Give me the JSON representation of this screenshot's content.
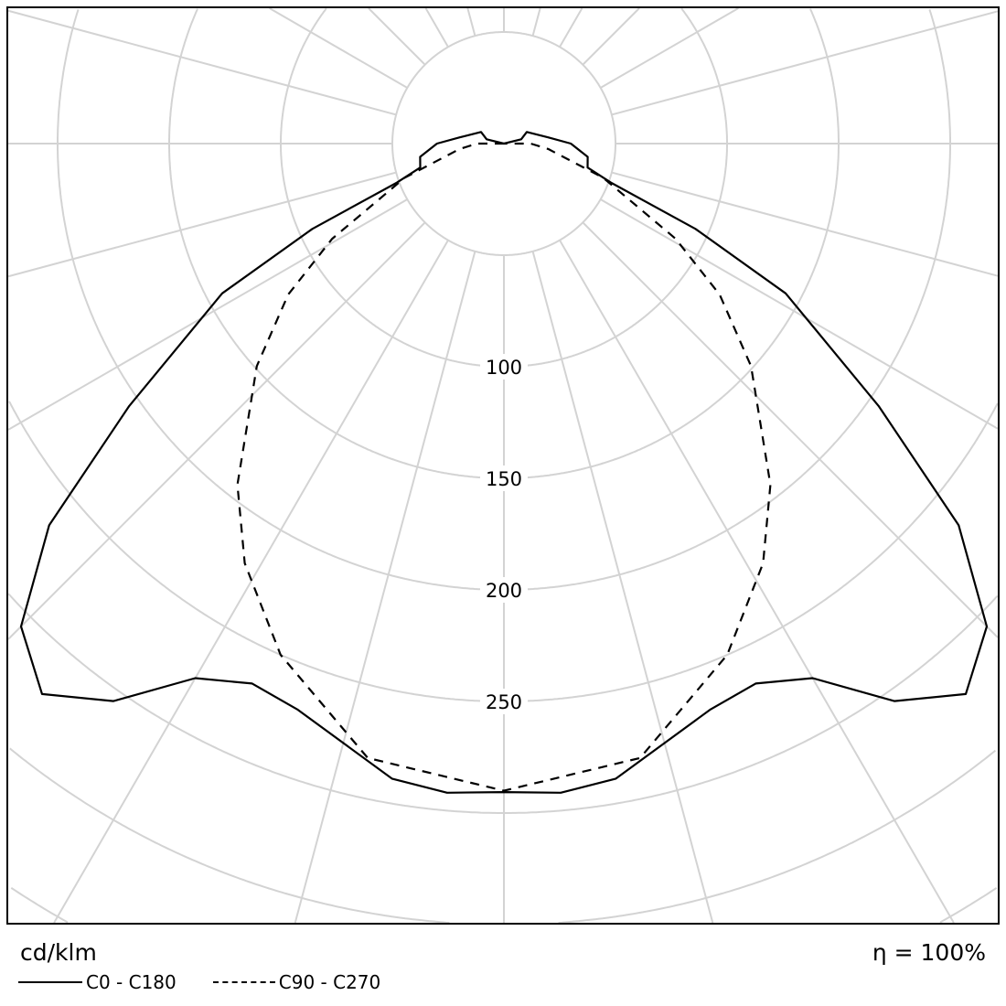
{
  "chart_data": {
    "type": "polar",
    "unit_label": "cd/klm",
    "efficiency_label": "η = 100%",
    "ring_values": [
      50,
      100,
      150,
      200,
      250,
      300,
      350,
      400,
      450
    ],
    "ring_labels": [
      "100",
      "150",
      "200",
      "250"
    ],
    "angle_step_deg": 15,
    "grid": true,
    "grid_color": "#d3d3d3",
    "legend_placement": "bottom-left",
    "series": [
      {
        "name": "C0 - C180",
        "style": "solid",
        "color": "#000000",
        "symmetric": true,
        "points": [
          [
            0,
            290.6
          ],
          [
            5,
            292
          ],
          [
            10,
            289
          ],
          [
            20,
            270
          ],
          [
            25,
            267
          ],
          [
            30,
            276.6
          ],
          [
            35,
            305
          ],
          [
            40,
            322
          ],
          [
            45,
            306
          ],
          [
            50,
            266
          ],
          [
            55,
            205
          ],
          [
            62,
            143
          ],
          [
            66,
            94
          ],
          [
            70,
            51
          ],
          [
            74,
            39
          ],
          [
            81,
            38
          ],
          [
            90,
            30
          ],
          [
            98,
            20
          ],
          [
            117,
            11.5
          ],
          [
            104,
            8
          ],
          [
            180,
            0
          ]
        ]
      },
      {
        "name": "C90 - C270",
        "style": "dashed",
        "color": "#000000",
        "symmetric": true,
        "points": [
          [
            0,
            290
          ],
          [
            12.5,
            282
          ],
          [
            23.6,
            250
          ],
          [
            31.7,
            221
          ],
          [
            38,
            194
          ],
          [
            48,
            149
          ],
          [
            55,
            118
          ],
          [
            61,
            88
          ],
          [
            71,
            47
          ],
          [
            83,
            20
          ],
          [
            90,
            12
          ],
          [
            180,
            0
          ]
        ]
      }
    ]
  }
}
